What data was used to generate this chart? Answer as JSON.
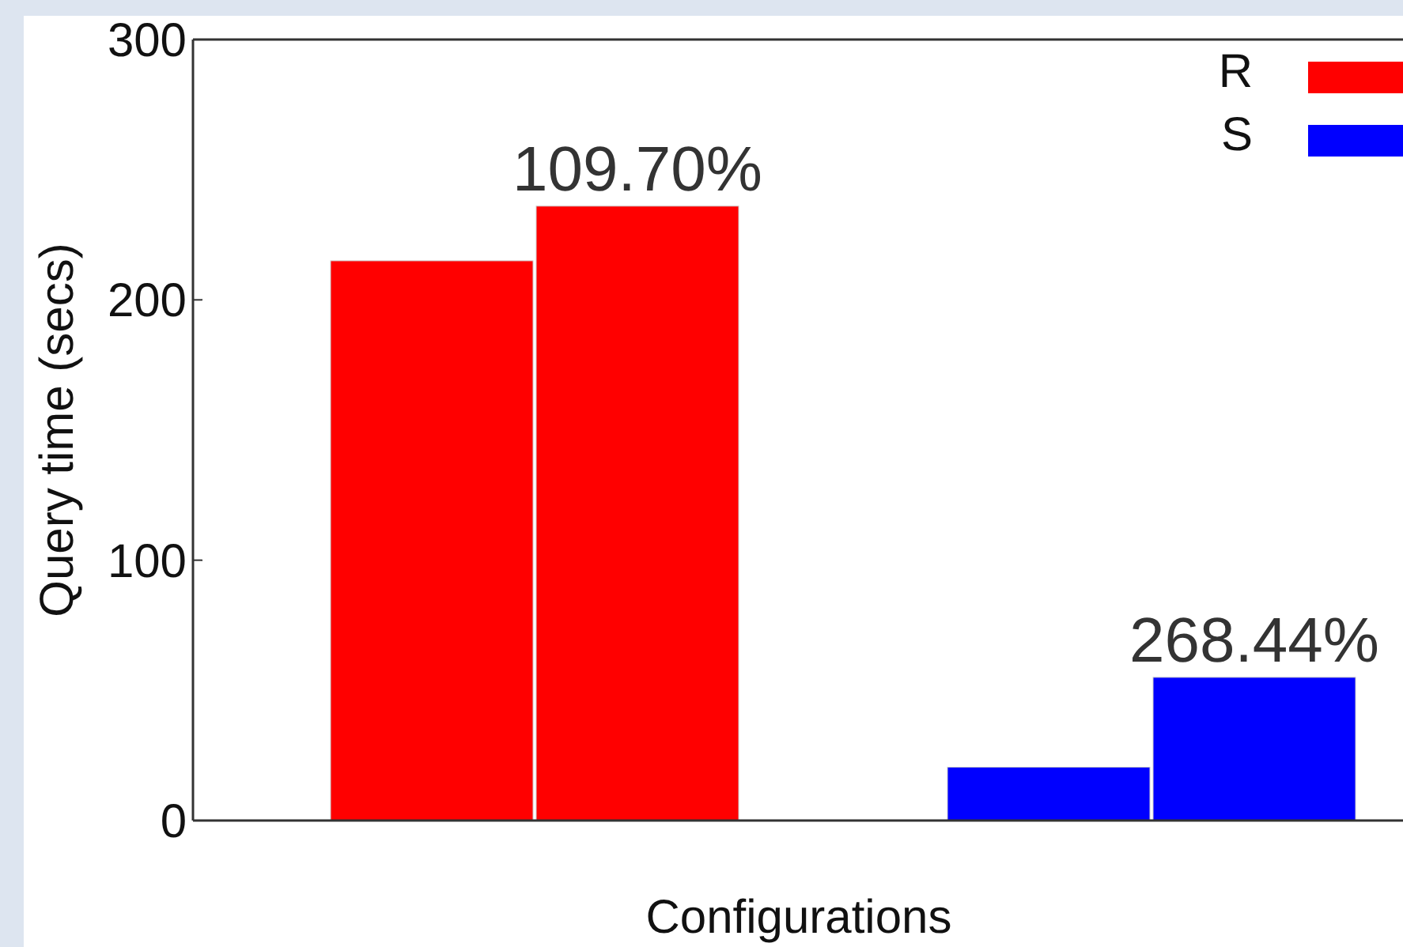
{
  "chart_data": {
    "type": "bar",
    "xlabel": "Configurations",
    "ylabel": "Query time (secs)",
    "categories": [
      null,
      null,
      null,
      null
    ],
    "series": [
      {
        "name": "R",
        "color": "#ff0000",
        "values": [
          215,
          236,
          null,
          null
        ]
      },
      {
        "name": "S",
        "color": "#0000ff",
        "values": [
          null,
          null,
          20.5,
          55
        ]
      }
    ],
    "annotations": [
      {
        "text": "109.70%",
        "y": 236
      },
      {
        "text": "268.44%",
        "y": 55
      }
    ],
    "ylim": [
      0,
      300
    ],
    "yticks": [
      0,
      100,
      200,
      300
    ],
    "legend": "top right",
    "grid": false
  }
}
